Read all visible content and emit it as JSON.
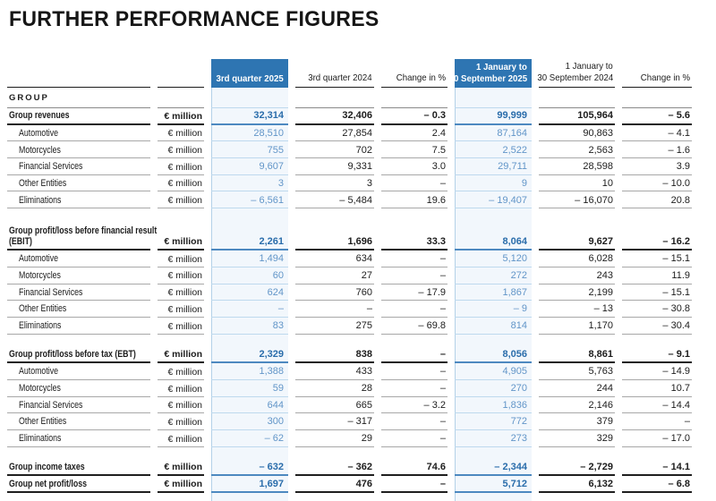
{
  "title": "FURTHER PERFORMANCE FIGURES",
  "table": {
    "section_label": "GROUP",
    "unit_label": "€ million",
    "columns": [
      {
        "line1": "3rd quarter 2025",
        "line2": "",
        "highlight": true
      },
      {
        "line1": "3rd quarter 2024",
        "line2": "",
        "highlight": false
      },
      {
        "line1": "Change in %",
        "line2": "",
        "highlight": false
      },
      {
        "line1": "1 January to",
        "line2": "30 September 2025",
        "highlight": true
      },
      {
        "line1": "1 January to",
        "line2": "30 September 2024",
        "highlight": false
      },
      {
        "line1": "Change in %",
        "line2": "",
        "highlight": false
      }
    ],
    "highlight_color": "#2e75b2",
    "rows": [
      {
        "label": "Group revenues",
        "bold": true,
        "values": [
          "32,314",
          "32,406",
          "– 0.3",
          "99,999",
          "105,964",
          "– 5.6"
        ]
      },
      {
        "label": "Automotive",
        "indent": true,
        "values": [
          "28,510",
          "27,854",
          "2.4",
          "87,164",
          "90,863",
          "– 4.1"
        ]
      },
      {
        "label": "Motorcycles",
        "indent": true,
        "values": [
          "755",
          "702",
          "7.5",
          "2,522",
          "2,563",
          "– 1.6"
        ]
      },
      {
        "label": "Financial Services",
        "indent": true,
        "values": [
          "9,607",
          "9,331",
          "3.0",
          "29,711",
          "28,598",
          "3.9"
        ]
      },
      {
        "label": "Other Entities",
        "indent": true,
        "values": [
          "3",
          "3",
          "–",
          "9",
          "10",
          "– 10.0"
        ]
      },
      {
        "label": "Eliminations",
        "indent": true,
        "values": [
          "– 6,561",
          "– 5,484",
          "19.6",
          "– 19,407",
          "– 16,070",
          "20.8"
        ]
      },
      {
        "type": "spacer",
        "h": 16
      },
      {
        "label_lines": [
          "Group profit/loss before financial result",
          "(EBIT)"
        ],
        "bold": true,
        "tall": true,
        "values": [
          "2,261",
          "1,696",
          "33.3",
          "8,064",
          "9,627",
          "– 16.2"
        ]
      },
      {
        "label": "Automotive",
        "indent": true,
        "values": [
          "1,494",
          "634",
          "–",
          "5,120",
          "6,028",
          "– 15.1"
        ]
      },
      {
        "label": "Motorcycles",
        "indent": true,
        "values": [
          "60",
          "27",
          "–",
          "272",
          "243",
          "11.9"
        ]
      },
      {
        "label": "Financial Services",
        "indent": true,
        "values": [
          "624",
          "760",
          "– 17.9",
          "1,867",
          "2,199",
          "– 15.1"
        ]
      },
      {
        "label": "Other Entities",
        "indent": true,
        "values": [
          "–",
          "–",
          "–",
          "– 9",
          "– 13",
          "– 30.8"
        ]
      },
      {
        "label": "Eliminations",
        "indent": true,
        "values": [
          "83",
          "275",
          "– 69.8",
          "814",
          "1,170",
          "– 30.4"
        ]
      },
      {
        "type": "spacer",
        "h": 14
      },
      {
        "label": "Group profit/loss before tax (EBT)",
        "bold": true,
        "values": [
          "2,329",
          "838",
          "–",
          "8,056",
          "8,861",
          "– 9.1"
        ]
      },
      {
        "label": "Automotive",
        "indent": true,
        "values": [
          "1,388",
          "433",
          "–",
          "4,905",
          "5,763",
          "– 14.9"
        ]
      },
      {
        "label": "Motorcycles",
        "indent": true,
        "values": [
          "59",
          "28",
          "–",
          "270",
          "244",
          "10.7"
        ]
      },
      {
        "label": "Financial Services",
        "indent": true,
        "values": [
          "644",
          "665",
          "– 3.2",
          "1,836",
          "2,146",
          "– 14.4"
        ]
      },
      {
        "label": "Other Entities",
        "indent": true,
        "values": [
          "300",
          "– 317",
          "–",
          "772",
          "379",
          "–"
        ]
      },
      {
        "label": "Eliminations",
        "indent": true,
        "values": [
          "– 62",
          "29",
          "–",
          "273",
          "329",
          "– 17.0"
        ]
      },
      {
        "type": "spacer",
        "h": 14
      },
      {
        "label": "Group income taxes",
        "bold": true,
        "values": [
          "– 632",
          "– 362",
          "74.6",
          "– 2,344",
          "– 2,729",
          "– 14.1"
        ]
      },
      {
        "label": "Group net profit/loss",
        "bold": true,
        "values": [
          "1,697",
          "476",
          "–",
          "5,712",
          "6,132",
          "– 6.8"
        ]
      }
    ]
  }
}
